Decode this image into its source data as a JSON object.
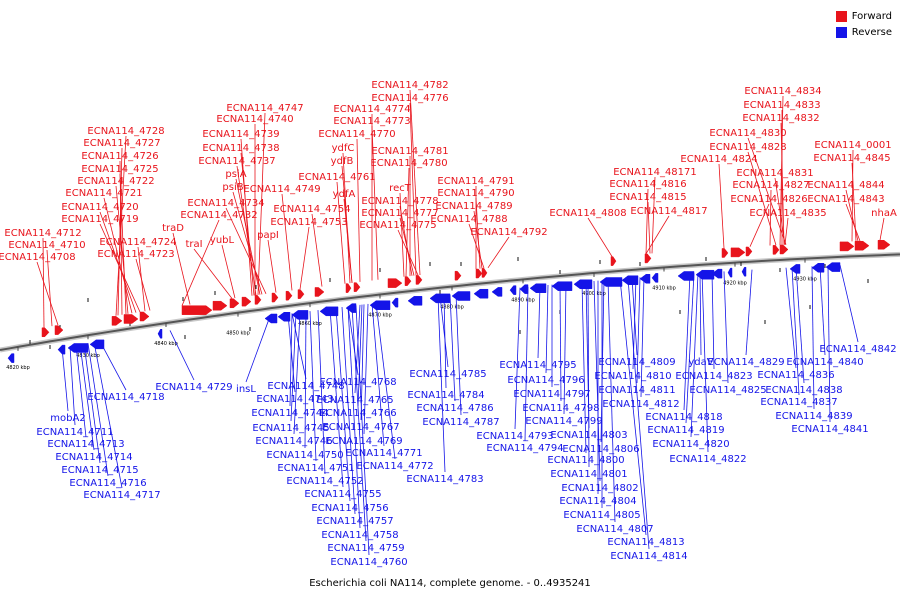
{
  "legend": {
    "items": [
      {
        "label": "Forward",
        "color": "#e8141c"
      },
      {
        "label": "Reverse",
        "color": "#1414e8"
      }
    ]
  },
  "caption": "Escherichia coli NA114, complete genome. - 0..4935241",
  "axis_ticks": [
    "4820 kbp",
    "4830 kbp",
    "4840 kbp",
    "4850 kbp",
    "4860 kbp",
    "4870 kbp",
    "4880 kbp",
    "4890 kbp",
    "4900 kbp",
    "4910 kbp",
    "4920 kbp",
    "4930 kbp"
  ],
  "forward_labels": [
    "ECNA114_4782",
    "ECNA114_4776",
    "ECNA114_4747",
    "ECNA114_4774",
    "ECNA114_4740",
    "ECNA114_4773",
    "ECNA114_4728",
    "ECNA114_4739",
    "ECNA114_4770",
    "ECNA114_4727",
    "ECNA114_4738",
    "ydfC",
    "ECNA114_4781",
    "ECNA114_4726",
    "ECNA114_4737",
    "ydfB",
    "ECNA114_4780",
    "ECNA114_4725",
    "psiA",
    "ECNA114_4761",
    "ECNA114_4722",
    "psiB",
    "ECNA114_4749",
    "ydfA",
    "recT",
    "ECNA114_4721",
    "ECNA114_4734",
    "ECNA114_4754",
    "ECNA114_4778",
    "ECNA114_4720",
    "ECNA114_4732",
    "ECNA114_4753",
    "ECNA114_4777",
    "ECNA114_4719",
    "traD",
    "yubL",
    "papI",
    "ECNA114_4775",
    "ECNA114_4712",
    "traI",
    "ECNA114_4724",
    "ECNA114_4710",
    "ECNA114_4723",
    "ECNA114_4708",
    "ECNA114_4791",
    "ECNA114_4790",
    "ECNA114_4789",
    "ECNA114_4788",
    "ECNA114_4792",
    "ECNA114_4808",
    "ECNA114_4834",
    "ECNA114_4833",
    "ECNA114_4832",
    "ECNA114_4830",
    "ECNA114_4828",
    "ECNA114_4824",
    "ECNA114_48171",
    "ECNA114_4816",
    "ECNA114_4815",
    "ECNA114_4817",
    "ECNA114_4831",
    "ECNA114_4827",
    "ECNA114_4826",
    "ECNA114_4835",
    "ECNA114_0001",
    "ECNA114_4845",
    "ECNA114_4844",
    "ECNA114_4843",
    "nhaA"
  ],
  "reverse_labels": [
    "ECNA114_4729",
    "insL",
    "ECNA114_4748",
    "ECNA114_4768",
    "ECNA114_4718",
    "ECNA114_4743",
    "ECNA114_4765",
    "ECNA114_4744",
    "ECNA114_4766",
    "mobA2",
    "ECNA114_4745",
    "ECNA114_4767",
    "ECNA114_4711",
    "ECNA114_4746",
    "ECNA114_4769",
    "ECNA114_4713",
    "ECNA114_4750",
    "ECNA114_4771",
    "ECNA114_4714",
    "ECNA114_4751",
    "ECNA114_4772",
    "ECNA114_4715",
    "ECNA114_4752",
    "ECNA114_4716",
    "ECNA114_4755",
    "ECNA114_4717",
    "ECNA114_4756",
    "ECNA114_4757",
    "ECNA114_4758",
    "ECNA114_4759",
    "ECNA114_4760",
    "ECNA114_4783",
    "ECNA114_4785",
    "ECNA114_4784",
    "ECNA114_4786",
    "ECNA114_4787",
    "ECNA114_4793",
    "ECNA114_4794",
    "ECNA114_4795",
    "ECNA114_4796",
    "ECNA114_4797",
    "ECNA114_4798",
    "ECNA114_4799",
    "ECNA114_4803",
    "ECNA114_4806",
    "ECNA114_4800",
    "ECNA114_4801",
    "ECNA114_4802",
    "ECNA114_4804",
    "ECNA114_4805",
    "ECNA114_4807",
    "ECNA114_4813",
    "ECNA114_4814",
    "ECNA114_4809",
    "ECNA114_4810",
    "ECNA114_4811",
    "ECNA114_4812",
    "ydaV",
    "ECNA114_4823",
    "ECNA114_4818",
    "ECNA114_4819",
    "ECNA114_4820",
    "ECNA114_4822",
    "ECNA114_4825",
    "ECNA114_4829",
    "ECNA114_4836",
    "ECNA114_4837",
    "ECNA114_4838",
    "ECNA114_4839",
    "ECNA114_4840",
    "ECNA114_4841",
    "ECNA114_4842"
  ]
}
